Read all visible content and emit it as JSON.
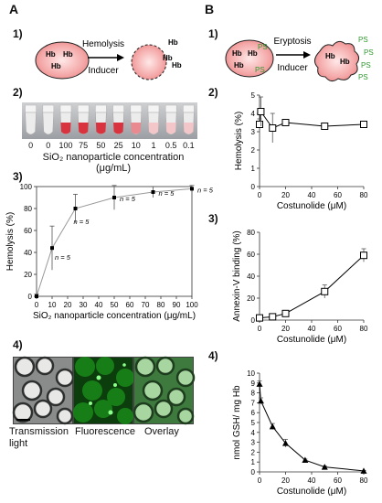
{
  "panels": {
    "A": {
      "label": "A",
      "sub1": {
        "num": "1)",
        "cell_text": "Hb",
        "arrow_top": "Hemolysis",
        "arrow_bottom": "Inducer"
      },
      "sub2": {
        "num": "2)",
        "tube_labels": [
          "0",
          "0",
          "100",
          "75",
          "50",
          "25",
          "10",
          "1",
          "0.5",
          "0.1"
        ],
        "caption": "SiO₂ nanoparticle concentration (μg/mL)"
      },
      "sub3": {
        "num": "3)",
        "n_label": "n = 5"
      },
      "sub4": {
        "num": "4)",
        "label_transmission": "Transmission light",
        "label_fluorescence": "Fluorescence",
        "label_overlay": "Overlay"
      }
    },
    "B": {
      "label": "B",
      "sub1": {
        "num": "1)",
        "cell_text": "Hb",
        "ps_text": "PS",
        "arrow_top": "Eryptosis",
        "arrow_bottom": "Inducer"
      },
      "sub2": {
        "num": "2)"
      },
      "sub3": {
        "num": "3)"
      },
      "sub4": {
        "num": "4)"
      }
    }
  },
  "chart_data": [
    {
      "id": "A3",
      "type": "line",
      "x": [
        0,
        10,
        25,
        50,
        75,
        100
      ],
      "y": [
        0,
        44,
        80,
        90,
        95,
        98
      ],
      "err": [
        2,
        20,
        13,
        11,
        5,
        3
      ],
      "n_labels": [
        "n = 5",
        "n = 5",
        "n = 5",
        "n = 5",
        "n = 5"
      ],
      "xlabel": "SiO₂ nanoparticle concentration (μg/mL)",
      "ylabel": "Hemolysis (%)",
      "xticks": [
        "0",
        "10",
        "20",
        "30",
        "40",
        "50",
        "60",
        "70",
        "80",
        "90",
        "100"
      ],
      "yticks": [
        "0",
        "20",
        "40",
        "60",
        "80",
        "100"
      ],
      "xlim": [
        0,
        100
      ],
      "ylim": [
        0,
        100
      ]
    },
    {
      "id": "B2",
      "type": "line",
      "x": [
        0,
        1,
        10,
        20,
        50,
        80
      ],
      "y": [
        3.4,
        4.1,
        3.2,
        3.5,
        3.3,
        3.4
      ],
      "err": [
        0.3,
        0.8,
        0.8,
        0.1,
        0.1,
        0.1
      ],
      "xlabel": "Costunolide (μM)",
      "ylabel": "Hemolysis (%)",
      "xticks": [
        "0",
        "20",
        "40",
        "60",
        "80"
      ],
      "yticks": [
        "0",
        "1",
        "2",
        "3",
        "4",
        "5"
      ],
      "xlim": [
        0,
        80
      ],
      "ylim": [
        0,
        5
      ]
    },
    {
      "id": "B3",
      "type": "line",
      "x": [
        0,
        10,
        20,
        50,
        80
      ],
      "y": [
        2,
        3,
        6,
        26,
        59
      ],
      "err": [
        1,
        1,
        1,
        6,
        6
      ],
      "xlabel": "Costunolide (μM)",
      "ylabel": "Annexin-V binding (%)",
      "xticks": [
        "0",
        "20",
        "40",
        "60",
        "80"
      ],
      "yticks": [
        "0",
        "20",
        "40",
        "60",
        "80"
      ],
      "xlim": [
        0,
        80
      ],
      "ylim": [
        0,
        80
      ]
    },
    {
      "id": "B4",
      "type": "line",
      "x": [
        0,
        1,
        10,
        20,
        35,
        50,
        80
      ],
      "y": [
        8.9,
        7.2,
        4.6,
        2.9,
        1.2,
        0.5,
        0.1
      ],
      "err": [
        0.3,
        0.3,
        0.3,
        0.4,
        0.1,
        0.1,
        0.05
      ],
      "xlabel": "Costunolide (μM)",
      "ylabel": "nmol GSH/ mg Hb",
      "xticks": [
        "0",
        "20",
        "40",
        "60",
        "80"
      ],
      "yticks": [
        "0",
        "1",
        "2",
        "3",
        "4",
        "5",
        "6",
        "7",
        "8",
        "9",
        "10"
      ],
      "xlim": [
        0,
        80
      ],
      "ylim": [
        0,
        10
      ]
    }
  ]
}
